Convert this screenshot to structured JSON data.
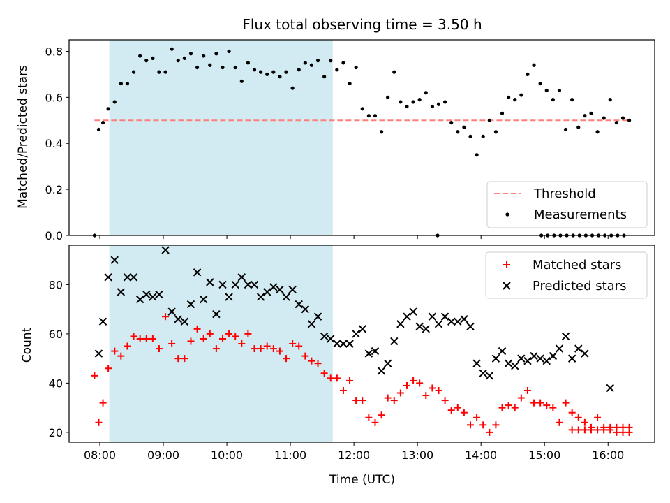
{
  "chart_data": [
    {
      "type": "scatter",
      "title": "Flux total observing time = 3.50 h",
      "xlabel": "",
      "ylabel": "Matched/Predicted stars",
      "xlim": [
        "07:31",
        "16:44"
      ],
      "ylim": [
        0,
        0.85
      ],
      "yticks": [
        0.0,
        0.2,
        0.4,
        0.6,
        0.8
      ],
      "ytick_labels": [
        "0.0",
        "0.2",
        "0.4",
        "0.6",
        "0.8"
      ],
      "highlight_span": {
        "x_start": "08:09",
        "x_end": "11:40",
        "color": "#add8e6"
      },
      "threshold": {
        "y": 0.5,
        "color": "#ff7f7f",
        "label": "Threshold"
      },
      "legend": {
        "placement": "lower-right",
        "entries": [
          "Threshold",
          "Measurements"
        ]
      },
      "series": [
        {
          "name": "Measurements",
          "marker": "dot",
          "color": "#000000",
          "x": [
            "07:55",
            "07:59",
            "08:03",
            "08:08",
            "08:14",
            "08:20",
            "08:26",
            "08:32",
            "08:38",
            "08:44",
            "08:50",
            "08:56",
            "09:02",
            "09:08",
            "09:14",
            "09:20",
            "09:26",
            "09:32",
            "09:38",
            "09:44",
            "09:50",
            "09:56",
            "10:02",
            "10:08",
            "10:14",
            "10:20",
            "10:26",
            "10:32",
            "10:38",
            "10:44",
            "10:50",
            "10:56",
            "11:02",
            "11:08",
            "11:14",
            "11:20",
            "11:26",
            "11:32",
            "11:38",
            "11:44",
            "11:50",
            "11:56",
            "12:02",
            "12:08",
            "12:14",
            "12:20",
            "12:26",
            "12:32",
            "12:38",
            "12:44",
            "12:50",
            "12:56",
            "13:02",
            "13:08",
            "13:14",
            "13:20",
            "13:26",
            "13:32",
            "13:38",
            "13:44",
            "13:50",
            "13:56",
            "14:02",
            "14:08",
            "14:14",
            "14:20",
            "14:26",
            "14:32",
            "14:38",
            "14:44",
            "14:50",
            "14:56",
            "15:02",
            "15:08",
            "15:14",
            "15:20",
            "15:26",
            "15:32",
            "15:38",
            "15:44",
            "15:50",
            "15:56",
            "16:02",
            "16:08",
            "16:14",
            "16:20"
          ],
          "y": [
            0.0,
            0.46,
            0.49,
            0.55,
            0.58,
            0.66,
            0.66,
            0.71,
            0.78,
            0.76,
            0.77,
            0.71,
            0.71,
            0.81,
            0.76,
            0.77,
            0.79,
            0.73,
            0.78,
            0.74,
            0.79,
            0.73,
            0.8,
            0.73,
            0.67,
            0.75,
            0.72,
            0.71,
            0.7,
            0.71,
            0.69,
            0.71,
            0.64,
            0.72,
            0.75,
            0.74,
            0.76,
            0.69,
            0.76,
            0.72,
            0.75,
            0.66,
            0.73,
            0.55,
            0.52,
            0.52,
            0.45,
            0.6,
            0.71,
            0.58,
            0.56,
            0.58,
            0.59,
            0.62,
            0.56,
            0.57,
            0.58,
            0.49,
            0.45,
            0.47,
            0.43,
            0.35,
            0.43,
            0.5,
            0.45,
            0.53,
            0.6,
            0.59,
            0.61,
            0.7,
            0.74,
            0.66,
            0.63,
            0.59,
            0.63,
            0.46,
            0.59,
            0.47,
            0.52,
            0.53,
            0.45,
            0.51,
            0.59,
            0.49,
            0.51,
            0.5
          ],
          "x_zero": [
            "13:19",
            "14:57",
            "15:03",
            "15:09",
            "15:15",
            "15:21",
            "15:27",
            "15:33",
            "15:39",
            "15:45",
            "15:51",
            "15:57",
            "16:03",
            "16:09",
            "16:15"
          ],
          "extra": [
            {
              "x": "15:27",
              "y": 0.49
            },
            {
              "x": "16:04",
              "y": 0.52
            },
            {
              "x": "15:08",
              "y": 0.52
            }
          ]
        }
      ]
    },
    {
      "type": "scatter",
      "title": "",
      "xlabel": "Time (UTC)",
      "ylabel": "Count",
      "xlim": [
        "07:31",
        "16:44"
      ],
      "ylim": [
        16,
        96
      ],
      "yticks": [
        20,
        40,
        60,
        80
      ],
      "ytick_labels": [
        "20",
        "40",
        "60",
        "80"
      ],
      "xticks": [
        "08:00",
        "09:00",
        "10:00",
        "11:00",
        "12:00",
        "13:00",
        "14:00",
        "15:00",
        "16:00"
      ],
      "xtick_labels": [
        "08:00",
        "09:00",
        "10:00",
        "11:00",
        "12:00",
        "13:00",
        "14:00",
        "15:00",
        "16:00"
      ],
      "highlight_span": {
        "x_start": "08:09",
        "x_end": "11:40",
        "color": "#add8e6"
      },
      "legend": {
        "placement": "upper-right",
        "entries": [
          "Matched stars",
          "Predicted stars"
        ]
      },
      "series": [
        {
          "name": "Matched stars",
          "marker": "plus",
          "color": "#ff0000",
          "x": [
            "07:55",
            "07:59",
            "08:03",
            "08:08",
            "08:14",
            "08:20",
            "08:26",
            "08:32",
            "08:38",
            "08:44",
            "08:50",
            "08:56",
            "09:02",
            "09:08",
            "09:14",
            "09:20",
            "09:26",
            "09:32",
            "09:38",
            "09:44",
            "09:50",
            "09:56",
            "10:02",
            "10:08",
            "10:14",
            "10:20",
            "10:26",
            "10:32",
            "10:38",
            "10:44",
            "10:50",
            "10:56",
            "11:02",
            "11:08",
            "11:14",
            "11:20",
            "11:26",
            "11:32",
            "11:38",
            "11:44",
            "11:50",
            "11:56",
            "12:02",
            "12:08",
            "12:14",
            "12:20",
            "12:26",
            "12:32",
            "12:38",
            "12:44",
            "12:50",
            "12:56",
            "13:02",
            "13:08",
            "13:14",
            "13:20",
            "13:26",
            "13:32",
            "13:38",
            "13:44",
            "13:50",
            "13:56",
            "14:02",
            "14:08",
            "14:14",
            "14:20",
            "14:26",
            "14:32",
            "14:38",
            "14:44",
            "14:50",
            "14:56",
            "15:02",
            "15:08",
            "15:14",
            "15:20",
            "15:26",
            "15:32",
            "15:38",
            "15:44",
            "15:50",
            "15:56",
            "16:02",
            "16:08",
            "16:14",
            "16:20"
          ],
          "y": [
            43,
            24,
            32,
            46,
            53,
            51,
            55,
            59,
            58,
            58,
            58,
            54,
            67,
            56,
            50,
            50,
            57,
            62,
            58,
            60,
            54,
            58,
            60,
            59,
            56,
            60,
            54,
            54,
            55,
            54,
            53,
            50,
            56,
            55,
            51,
            49,
            48,
            44,
            42,
            42,
            37,
            41,
            33,
            33,
            26,
            24,
            27,
            34,
            33,
            36,
            39,
            41,
            40,
            35,
            38,
            37,
            33,
            29,
            30,
            28,
            23,
            26,
            23,
            20,
            23,
            30,
            31,
            30,
            34,
            37,
            32,
            32,
            31,
            30,
            24,
            32,
            28,
            26,
            24,
            22,
            26,
            22,
            22,
            22,
            22,
            22
          ],
          "x_extra": [
            "15:26",
            "15:32",
            "15:38",
            "15:44",
            "15:50",
            "15:56",
            "16:02",
            "16:08",
            "16:14",
            "16:20"
          ],
          "y_extra": [
            21,
            21,
            21,
            21,
            21,
            21,
            21,
            20,
            20,
            20
          ]
        },
        {
          "name": "Predicted stars",
          "marker": "x",
          "color": "#000000",
          "x": [
            "07:59",
            "08:03",
            "08:08",
            "08:14",
            "08:20",
            "08:26",
            "08:32",
            "08:38",
            "08:44",
            "08:50",
            "08:56",
            "09:02",
            "09:08",
            "09:14",
            "09:20",
            "09:26",
            "09:32",
            "09:38",
            "09:44",
            "09:50",
            "09:56",
            "10:02",
            "10:08",
            "10:14",
            "10:20",
            "10:26",
            "10:32",
            "10:38",
            "10:44",
            "10:50",
            "10:56",
            "11:02",
            "11:08",
            "11:14",
            "11:20",
            "11:26",
            "11:32",
            "11:38",
            "11:44",
            "11:50",
            "11:56",
            "12:02",
            "12:08",
            "12:14",
            "12:20",
            "12:26",
            "12:32",
            "12:38",
            "12:44",
            "12:50",
            "12:56",
            "13:02",
            "13:08",
            "13:14",
            "13:20",
            "13:26",
            "13:32",
            "13:38",
            "13:44",
            "13:50",
            "13:56",
            "14:02",
            "14:08",
            "14:14",
            "14:20",
            "14:26",
            "14:32",
            "14:38",
            "14:44",
            "14:50",
            "14:56",
            "15:02",
            "15:08",
            "15:14",
            "15:20",
            "15:26",
            "15:32",
            "15:38",
            "16:02"
          ],
          "y": [
            52,
            65,
            83,
            90,
            77,
            83,
            83,
            74,
            76,
            75,
            76,
            94,
            69,
            66,
            65,
            72,
            85,
            74,
            81,
            68,
            80,
            75,
            80,
            83,
            80,
            80,
            75,
            77,
            79,
            78,
            75,
            78,
            72,
            70,
            64,
            67,
            59,
            58,
            56,
            56,
            56,
            60,
            62,
            52,
            53,
            45,
            48,
            57,
            64,
            67,
            69,
            63,
            62,
            67,
            64,
            67,
            65,
            65,
            66,
            63,
            48,
            44,
            43,
            50,
            53,
            48,
            47,
            50,
            49,
            51,
            50,
            49,
            51,
            54,
            59,
            50,
            54,
            52,
            38
          ],
          "x_extra": [
            "14:44",
            "14:50",
            "14:56",
            "15:02",
            "15:08",
            "15:14",
            "15:20",
            "15:26",
            "15:32",
            "15:38"
          ],
          "y_extra": [
            41,
            43,
            45,
            44,
            44,
            43,
            43,
            43,
            43,
            43
          ]
        }
      ]
    }
  ]
}
